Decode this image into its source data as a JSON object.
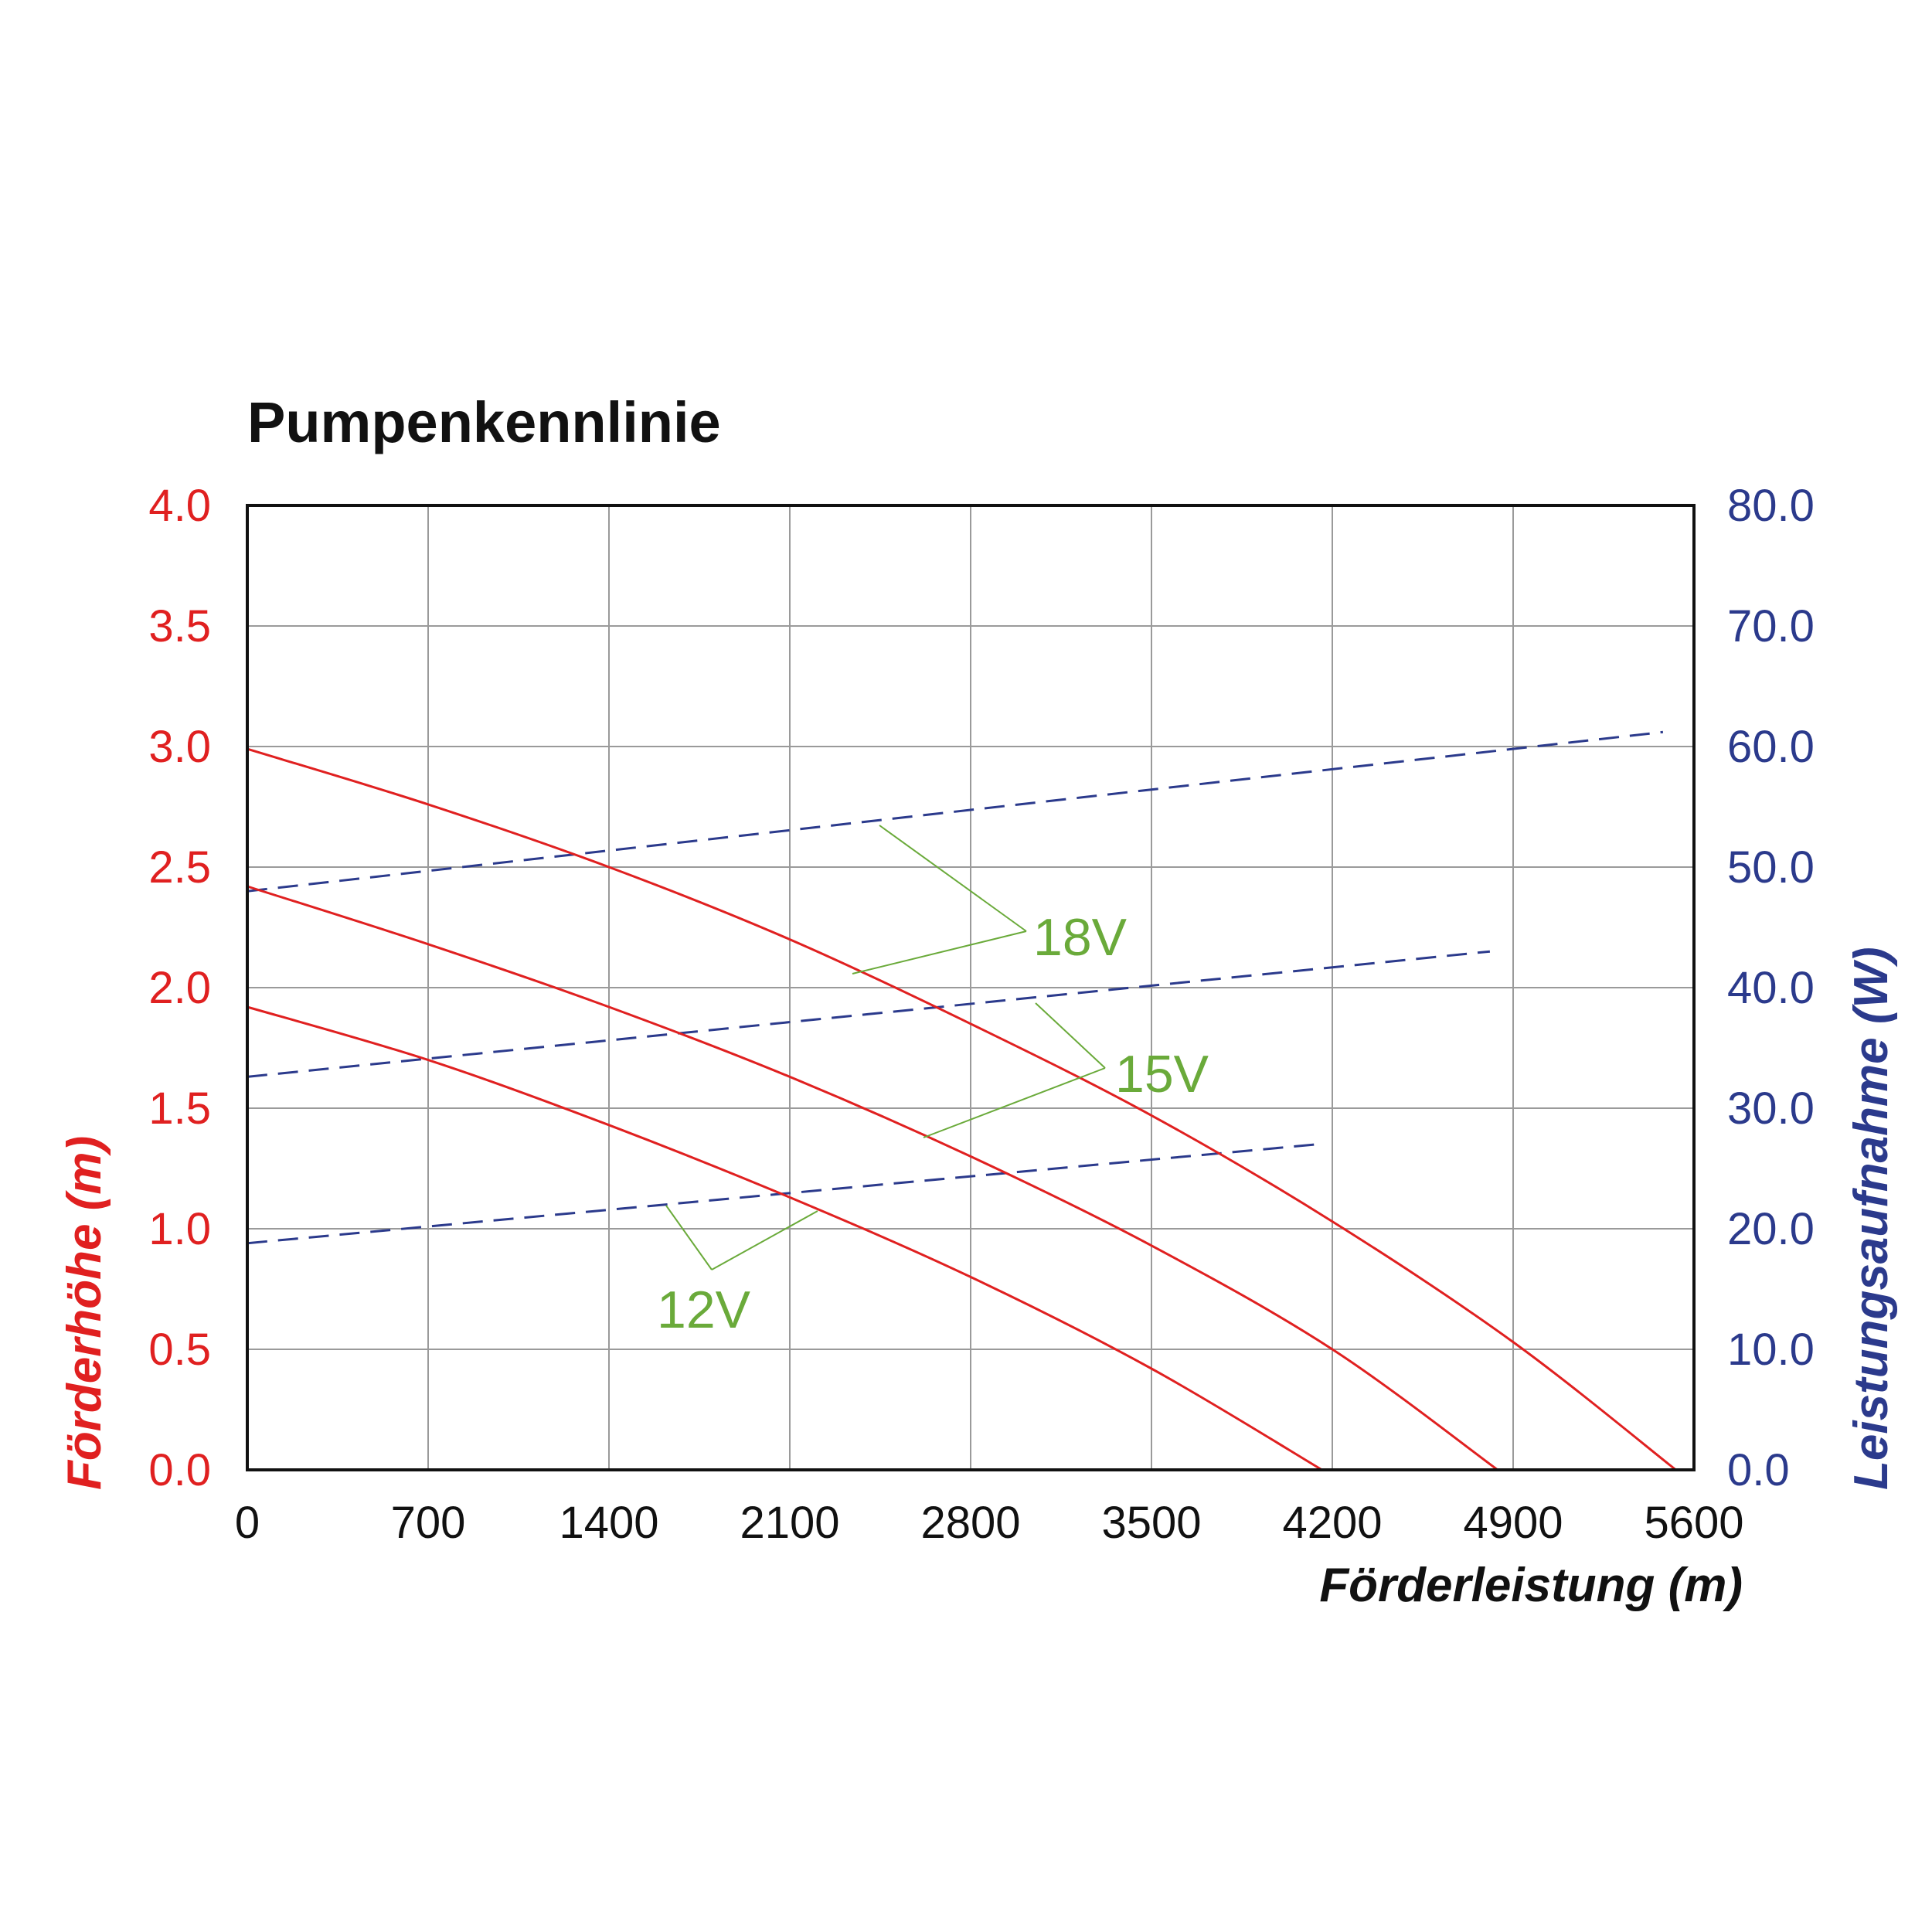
{
  "chart_data": {
    "type": "line",
    "title": "Pumpenkennlinie",
    "xlabel": "Förderleistung (m)",
    "ylabel_left": "Förderhöhe (m)",
    "ylabel_right": "Leistungsaufnahme (W)",
    "xlim": [
      0,
      5600
    ],
    "ylim_left": [
      0,
      4.0
    ],
    "ylim_right": [
      0,
      80.0
    ],
    "x_ticks": [
      "0",
      "700",
      "1400",
      "2100",
      "2800",
      "3500",
      "4200",
      "4900",
      "5600"
    ],
    "y_left_ticks": [
      "0.0",
      "0.5",
      "1.0",
      "1.5",
      "2.0",
      "2.5",
      "3.0",
      "3.5",
      "4.0"
    ],
    "y_right_ticks": [
      "0.0",
      "10.0",
      "20.0",
      "30.0",
      "40.0",
      "50.0",
      "60.0",
      "70.0",
      "80.0"
    ],
    "grid": true,
    "colors": {
      "head": "#e02020",
      "power": "#2b3a8c",
      "callout": "#6aaa3a",
      "grid": "#9a9a9a",
      "frame": "#111111"
    },
    "head_curves": [
      {
        "label": "18V",
        "x": [
          0,
          700,
          1400,
          2100,
          2800,
          3500,
          4200,
          4900,
          5530
        ],
        "y": [
          2.99,
          2.76,
          2.5,
          2.2,
          1.85,
          1.47,
          1.03,
          0.53,
          0.0
        ]
      },
      {
        "label": "15V",
        "x": [
          0,
          700,
          1400,
          2100,
          2800,
          3500,
          4200,
          4840
        ],
        "y": [
          2.42,
          2.18,
          1.92,
          1.63,
          1.3,
          0.93,
          0.5,
          0.0
        ]
      },
      {
        "label": "12V",
        "x": [
          0,
          700,
          1400,
          2100,
          2800,
          3500,
          4160
        ],
        "y": [
          1.92,
          1.7,
          1.43,
          1.13,
          0.8,
          0.42,
          0.0
        ]
      }
    ],
    "power_curves": [
      {
        "label": "18V",
        "x": [
          0,
          5480
        ],
        "y": [
          48.0,
          61.2
        ]
      },
      {
        "label": "15V",
        "x": [
          0,
          4810
        ],
        "y": [
          32.6,
          43.0
        ]
      },
      {
        "label": "12V",
        "x": [
          0,
          4140
        ],
        "y": [
          18.8,
          27.0
        ]
      }
    ],
    "callouts": [
      {
        "text": "18V",
        "anchor_series": "18V"
      },
      {
        "text": "15V",
        "anchor_series": "15V"
      },
      {
        "text": "12V",
        "anchor_series": "12V"
      }
    ]
  }
}
